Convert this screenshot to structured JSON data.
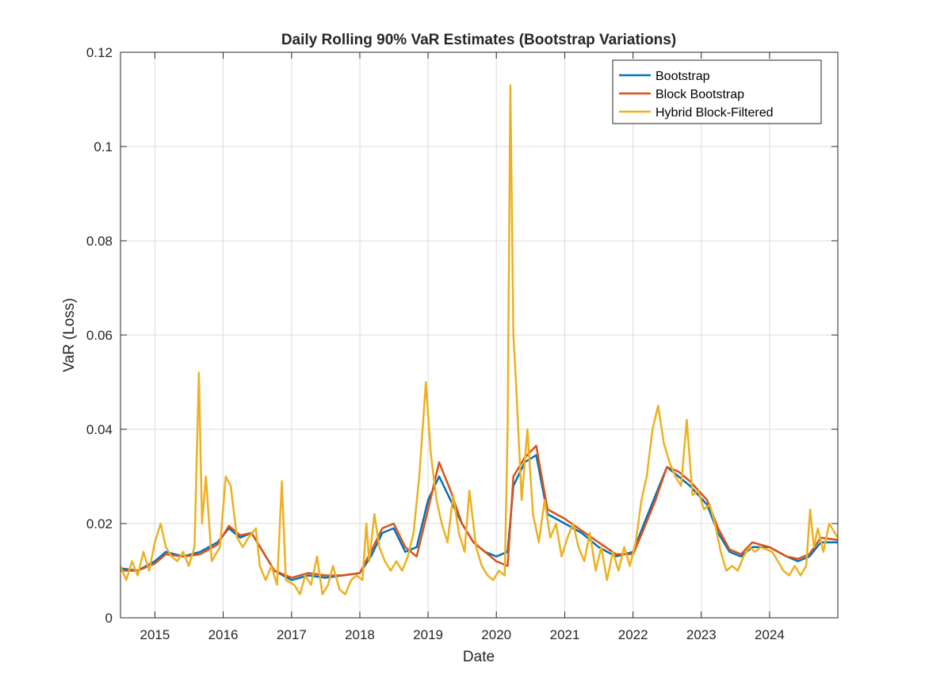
{
  "chart_data": {
    "type": "line",
    "title": "Daily Rolling 90% VaR Estimates (Bootstrap Variations)",
    "xlabel": "Date",
    "ylabel": "VaR (Loss)",
    "xlim": [
      "2014-07-01",
      "2024-12-31"
    ],
    "ylim": [
      0,
      0.12
    ],
    "yticks": [
      0,
      0.02,
      0.04,
      0.06,
      0.08,
      0.1,
      0.12
    ],
    "ytick_labels": [
      "0",
      "0.02",
      "0.04",
      "0.06",
      "0.08",
      "0.1",
      "0.12"
    ],
    "xticks": [
      "2015-01-01",
      "2016-01-01",
      "2017-01-01",
      "2018-01-01",
      "2019-01-01",
      "2020-01-01",
      "2021-01-01",
      "2022-01-01",
      "2023-01-01",
      "2024-01-01"
    ],
    "xtick_labels": [
      "2015",
      "2016",
      "2017",
      "2018",
      "2019",
      "2020",
      "2021",
      "2022",
      "2023",
      "2024"
    ],
    "grid": true,
    "legend_position": "top-right",
    "series": [
      {
        "name": "Bootstrap",
        "color": "#0072BD",
        "points": [
          [
            "2014-07-01",
            0.0105
          ],
          [
            "2014-10-01",
            0.01
          ],
          [
            "2015-01-01",
            0.012
          ],
          [
            "2015-03-01",
            0.014
          ],
          [
            "2015-06-01",
            0.013
          ],
          [
            "2015-09-01",
            0.014
          ],
          [
            "2015-12-01",
            0.016
          ],
          [
            "2016-02-01",
            0.019
          ],
          [
            "2016-04-01",
            0.017
          ],
          [
            "2016-06-01",
            0.018
          ],
          [
            "2016-08-01",
            0.014
          ],
          [
            "2016-10-01",
            0.01
          ],
          [
            "2017-01-01",
            0.008
          ],
          [
            "2017-04-01",
            0.009
          ],
          [
            "2017-07-01",
            0.0085
          ],
          [
            "2017-10-01",
            0.009
          ],
          [
            "2018-01-01",
            0.0095
          ],
          [
            "2018-03-01",
            0.013
          ],
          [
            "2018-05-01",
            0.018
          ],
          [
            "2018-07-01",
            0.019
          ],
          [
            "2018-09-01",
            0.014
          ],
          [
            "2018-11-01",
            0.015
          ],
          [
            "2019-01-01",
            0.025
          ],
          [
            "2019-03-01",
            0.03
          ],
          [
            "2019-05-01",
            0.025
          ],
          [
            "2019-07-01",
            0.02
          ],
          [
            "2019-09-01",
            0.016
          ],
          [
            "2019-11-01",
            0.014
          ],
          [
            "2020-01-01",
            0.013
          ],
          [
            "2020-03-01",
            0.014
          ],
          [
            "2020-04-01",
            0.028
          ],
          [
            "2020-06-01",
            0.033
          ],
          [
            "2020-08-01",
            0.0345
          ],
          [
            "2020-10-01",
            0.022
          ],
          [
            "2021-01-01",
            0.02
          ],
          [
            "2021-04-01",
            0.018
          ],
          [
            "2021-07-01",
            0.015
          ],
          [
            "2021-10-01",
            0.013
          ],
          [
            "2022-01-01",
            0.014
          ],
          [
            "2022-03-01",
            0.02
          ],
          [
            "2022-05-01",
            0.026
          ],
          [
            "2022-07-01",
            0.032
          ],
          [
            "2022-09-01",
            0.03
          ],
          [
            "2022-11-01",
            0.028
          ],
          [
            "2023-02-01",
            0.024
          ],
          [
            "2023-04-01",
            0.018
          ],
          [
            "2023-06-01",
            0.014
          ],
          [
            "2023-08-01",
            0.013
          ],
          [
            "2023-10-01",
            0.015
          ],
          [
            "2024-01-01",
            0.015
          ],
          [
            "2024-04-01",
            0.013
          ],
          [
            "2024-06-01",
            0.012
          ],
          [
            "2024-08-01",
            0.013
          ],
          [
            "2024-10-01",
            0.016
          ],
          [
            "2024-12-31",
            0.016
          ]
        ]
      },
      {
        "name": "Block Bootstrap",
        "color": "#D95319",
        "points": [
          [
            "2014-07-01",
            0.01
          ],
          [
            "2014-10-01",
            0.01
          ],
          [
            "2015-01-01",
            0.0115
          ],
          [
            "2015-03-01",
            0.0135
          ],
          [
            "2015-06-01",
            0.013
          ],
          [
            "2015-09-01",
            0.0135
          ],
          [
            "2015-12-01",
            0.0155
          ],
          [
            "2016-02-01",
            0.0195
          ],
          [
            "2016-04-01",
            0.0175
          ],
          [
            "2016-06-01",
            0.018
          ],
          [
            "2016-08-01",
            0.014
          ],
          [
            "2016-10-01",
            0.01
          ],
          [
            "2017-01-01",
            0.0085
          ],
          [
            "2017-04-01",
            0.0095
          ],
          [
            "2017-07-01",
            0.009
          ],
          [
            "2017-10-01",
            0.009
          ],
          [
            "2018-01-01",
            0.0095
          ],
          [
            "2018-03-01",
            0.014
          ],
          [
            "2018-05-01",
            0.019
          ],
          [
            "2018-07-01",
            0.02
          ],
          [
            "2018-09-01",
            0.015
          ],
          [
            "2018-11-01",
            0.013
          ],
          [
            "2019-01-01",
            0.023
          ],
          [
            "2019-03-01",
            0.033
          ],
          [
            "2019-05-01",
            0.027
          ],
          [
            "2019-07-01",
            0.02
          ],
          [
            "2019-09-01",
            0.016
          ],
          [
            "2019-11-01",
            0.014
          ],
          [
            "2020-01-01",
            0.012
          ],
          [
            "2020-03-01",
            0.011
          ],
          [
            "2020-04-01",
            0.03
          ],
          [
            "2020-06-01",
            0.034
          ],
          [
            "2020-08-01",
            0.0365
          ],
          [
            "2020-10-01",
            0.023
          ],
          [
            "2021-01-01",
            0.021
          ],
          [
            "2021-04-01",
            0.0185
          ],
          [
            "2021-07-01",
            0.016
          ],
          [
            "2021-10-01",
            0.0135
          ],
          [
            "2022-01-01",
            0.0135
          ],
          [
            "2022-03-01",
            0.019
          ],
          [
            "2022-05-01",
            0.025
          ],
          [
            "2022-07-01",
            0.032
          ],
          [
            "2022-09-01",
            0.031
          ],
          [
            "2022-11-01",
            0.029
          ],
          [
            "2023-02-01",
            0.025
          ],
          [
            "2023-04-01",
            0.019
          ],
          [
            "2023-06-01",
            0.0145
          ],
          [
            "2023-08-01",
            0.0135
          ],
          [
            "2023-10-01",
            0.016
          ],
          [
            "2024-01-01",
            0.015
          ],
          [
            "2024-04-01",
            0.013
          ],
          [
            "2024-06-01",
            0.0125
          ],
          [
            "2024-08-01",
            0.0135
          ],
          [
            "2024-10-01",
            0.017
          ],
          [
            "2024-12-31",
            0.0165
          ]
        ]
      },
      {
        "name": "Hybrid Block-Filtered",
        "color": "#EDB120",
        "points": [
          [
            "2014-07-01",
            0.011
          ],
          [
            "2014-08-01",
            0.008
          ],
          [
            "2014-09-01",
            0.012
          ],
          [
            "2014-10-01",
            0.009
          ],
          [
            "2014-11-01",
            0.014
          ],
          [
            "2014-12-01",
            0.01
          ],
          [
            "2015-01-01",
            0.016
          ],
          [
            "2015-02-01",
            0.02
          ],
          [
            "2015-03-01",
            0.015
          ],
          [
            "2015-04-01",
            0.013
          ],
          [
            "2015-05-01",
            0.012
          ],
          [
            "2015-06-01",
            0.014
          ],
          [
            "2015-07-01",
            0.011
          ],
          [
            "2015-08-01",
            0.015
          ],
          [
            "2015-08-24",
            0.052
          ],
          [
            "2015-09-10",
            0.02
          ],
          [
            "2015-10-01",
            0.03
          ],
          [
            "2015-11-01",
            0.012
          ],
          [
            "2015-12-15",
            0.015
          ],
          [
            "2016-01-15",
            0.03
          ],
          [
            "2016-02-10",
            0.028
          ],
          [
            "2016-03-15",
            0.017
          ],
          [
            "2016-04-15",
            0.015
          ],
          [
            "2016-05-15",
            0.017
          ],
          [
            "2016-06-24",
            0.019
          ],
          [
            "2016-07-15",
            0.011
          ],
          [
            "2016-08-15",
            0.008
          ],
          [
            "2016-09-15",
            0.011
          ],
          [
            "2016-10-15",
            0.007
          ],
          [
            "2016-11-10",
            0.029
          ],
          [
            "2016-12-01",
            0.008
          ],
          [
            "2017-01-15",
            0.007
          ],
          [
            "2017-02-15",
            0.005
          ],
          [
            "2017-03-15",
            0.009
          ],
          [
            "2017-04-15",
            0.007
          ],
          [
            "2017-05-17",
            0.013
          ],
          [
            "2017-06-15",
            0.005
          ],
          [
            "2017-07-15",
            0.007
          ],
          [
            "2017-08-10",
            0.011
          ],
          [
            "2017-09-15",
            0.006
          ],
          [
            "2017-10-15",
            0.005
          ],
          [
            "2017-11-15",
            0.008
          ],
          [
            "2017-12-15",
            0.009
          ],
          [
            "2018-01-15",
            0.008
          ],
          [
            "2018-02-05",
            0.02
          ],
          [
            "2018-02-20",
            0.012
          ],
          [
            "2018-03-20",
            0.022
          ],
          [
            "2018-04-15",
            0.015
          ],
          [
            "2018-05-15",
            0.012
          ],
          [
            "2018-06-15",
            0.01
          ],
          [
            "2018-07-15",
            0.012
          ],
          [
            "2018-08-15",
            0.01
          ],
          [
            "2018-09-15",
            0.013
          ],
          [
            "2018-10-15",
            0.018
          ],
          [
            "2018-11-15",
            0.03
          ],
          [
            "2018-12-20",
            0.05
          ],
          [
            "2019-01-15",
            0.035
          ],
          [
            "2019-02-15",
            0.025
          ],
          [
            "2019-03-15",
            0.02
          ],
          [
            "2019-04-15",
            0.016
          ],
          [
            "2019-05-15",
            0.026
          ],
          [
            "2019-06-15",
            0.018
          ],
          [
            "2019-07-15",
            0.014
          ],
          [
            "2019-08-10",
            0.027
          ],
          [
            "2019-09-15",
            0.015
          ],
          [
            "2019-10-15",
            0.011
          ],
          [
            "2019-11-15",
            0.009
          ],
          [
            "2019-12-15",
            0.008
          ],
          [
            "2020-01-15",
            0.01
          ],
          [
            "2020-02-15",
            0.009
          ],
          [
            "2020-03-01",
            0.04
          ],
          [
            "2020-03-16",
            0.113
          ],
          [
            "2020-04-01",
            0.06
          ],
          [
            "2020-04-15",
            0.05
          ],
          [
            "2020-05-15",
            0.025
          ],
          [
            "2020-06-15",
            0.04
          ],
          [
            "2020-07-15",
            0.022
          ],
          [
            "2020-08-15",
            0.016
          ],
          [
            "2020-09-15",
            0.025
          ],
          [
            "2020-10-15",
            0.017
          ],
          [
            "2020-11-15",
            0.02
          ],
          [
            "2020-12-15",
            0.013
          ],
          [
            "2021-01-15",
            0.017
          ],
          [
            "2021-02-15",
            0.02
          ],
          [
            "2021-03-15",
            0.015
          ],
          [
            "2021-04-15",
            0.012
          ],
          [
            "2021-05-15",
            0.018
          ],
          [
            "2021-06-15",
            0.01
          ],
          [
            "2021-07-15",
            0.015
          ],
          [
            "2021-08-15",
            0.008
          ],
          [
            "2021-09-15",
            0.014
          ],
          [
            "2021-10-15",
            0.01
          ],
          [
            "2021-11-15",
            0.015
          ],
          [
            "2021-12-15",
            0.011
          ],
          [
            "2022-01-15",
            0.016
          ],
          [
            "2022-02-15",
            0.025
          ],
          [
            "2022-03-15",
            0.03
          ],
          [
            "2022-04-15",
            0.04
          ],
          [
            "2022-05-15",
            0.045
          ],
          [
            "2022-06-15",
            0.037
          ],
          [
            "2022-07-15",
            0.033
          ],
          [
            "2022-08-15",
            0.03
          ],
          [
            "2022-09-15",
            0.028
          ],
          [
            "2022-10-15",
            0.042
          ],
          [
            "2022-11-15",
            0.026
          ],
          [
            "2022-12-15",
            0.027
          ],
          [
            "2023-01-15",
            0.023
          ],
          [
            "2023-02-15",
            0.024
          ],
          [
            "2023-03-15",
            0.02
          ],
          [
            "2023-04-15",
            0.014
          ],
          [
            "2023-05-15",
            0.01
          ],
          [
            "2023-06-15",
            0.011
          ],
          [
            "2023-07-15",
            0.01
          ],
          [
            "2023-08-15",
            0.013
          ],
          [
            "2023-09-15",
            0.015
          ],
          [
            "2023-10-15",
            0.014
          ],
          [
            "2023-11-15",
            0.015
          ],
          [
            "2024-01-15",
            0.014
          ],
          [
            "2024-02-15",
            0.012
          ],
          [
            "2024-03-15",
            0.01
          ],
          [
            "2024-04-15",
            0.009
          ],
          [
            "2024-05-15",
            0.011
          ],
          [
            "2024-06-15",
            0.009
          ],
          [
            "2024-07-15",
            0.011
          ],
          [
            "2024-08-05",
            0.023
          ],
          [
            "2024-08-25",
            0.015
          ],
          [
            "2024-09-15",
            0.019
          ],
          [
            "2024-10-15",
            0.014
          ],
          [
            "2024-11-15",
            0.02
          ],
          [
            "2024-12-31",
            0.017
          ]
        ]
      }
    ]
  }
}
